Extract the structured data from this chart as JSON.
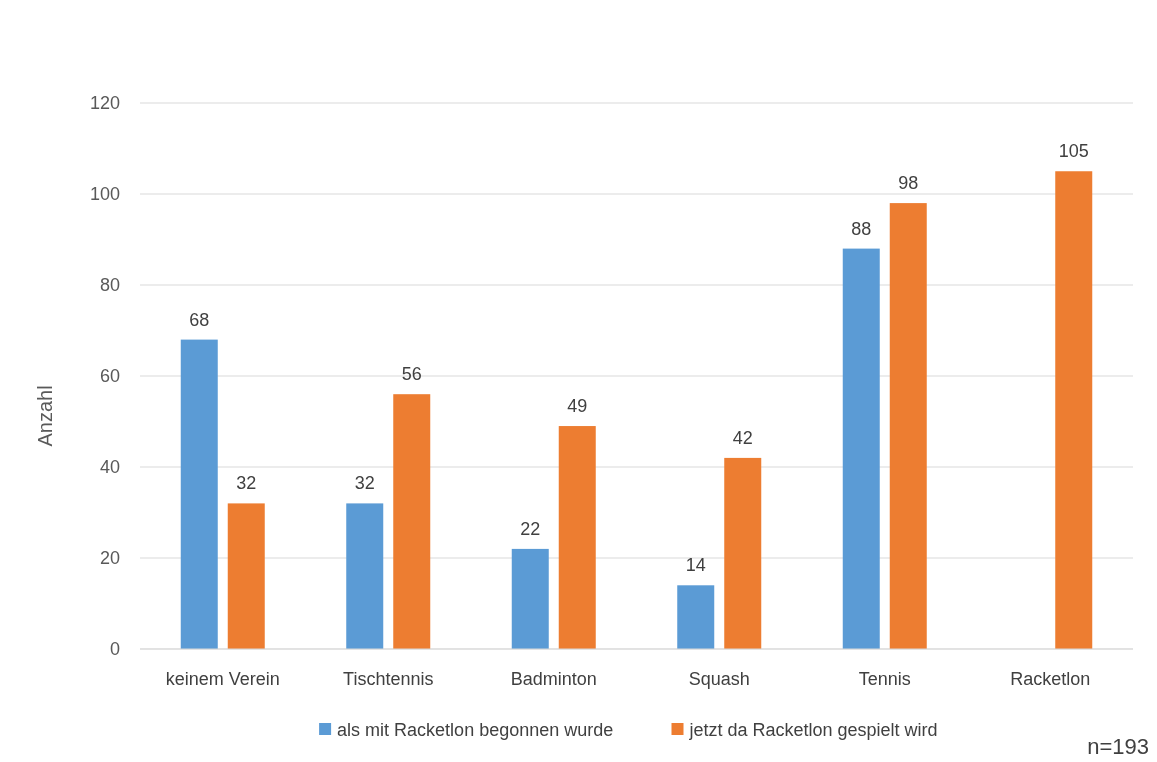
{
  "chart_data": {
    "type": "bar",
    "ylabel": "Anzahl",
    "categories": [
      "keinem Verein",
      "Tischtennis",
      "Badminton",
      "Squash",
      "Tennis",
      "Racketlon"
    ],
    "series": [
      {
        "name": "als mit Racketlon begonnen wurde",
        "color": "#5b9bd5",
        "values": [
          68,
          32,
          22,
          14,
          88,
          null
        ]
      },
      {
        "name": "jetzt da Racketlon gespielt wird",
        "color": "#ed7d31",
        "values": [
          32,
          56,
          49,
          42,
          98,
          105
        ]
      }
    ],
    "ylim": [
      0,
      120
    ],
    "yticks": [
      0,
      20,
      40,
      60,
      80,
      100,
      120
    ],
    "grid": "y",
    "legend": "bottom",
    "data_labels": true,
    "annotations": [
      "n=193"
    ]
  }
}
